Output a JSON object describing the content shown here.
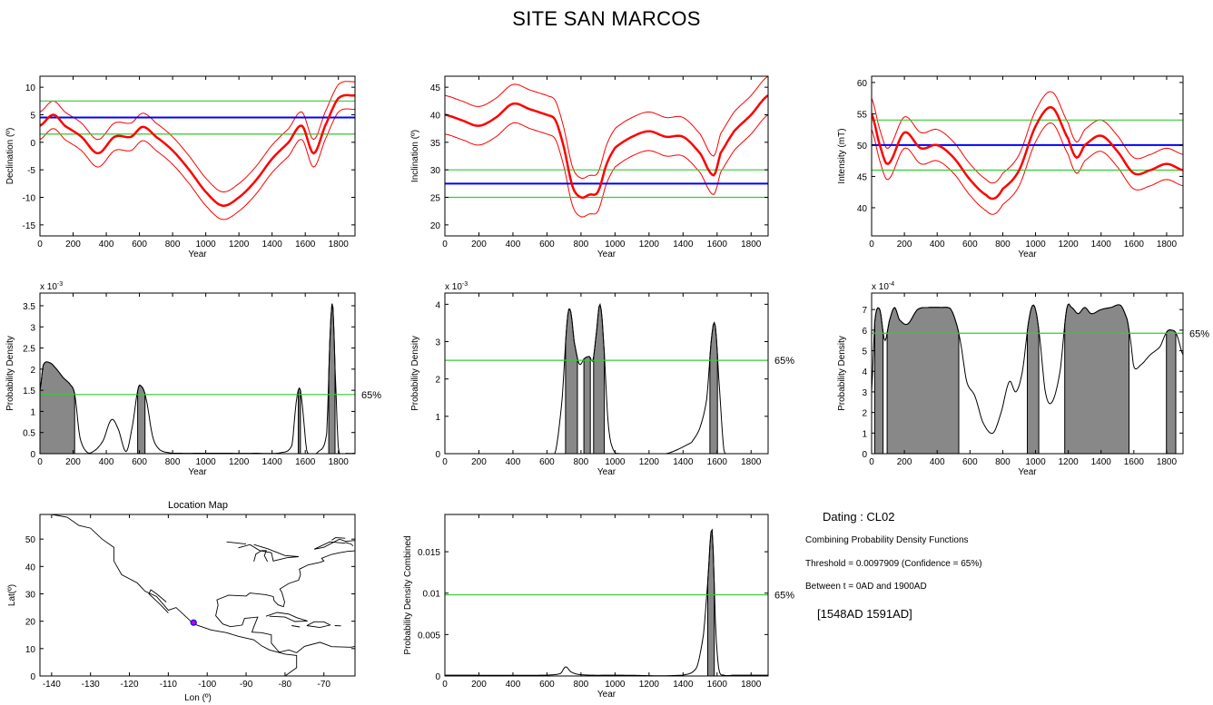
{
  "title": "SITE SAN MARCOS",
  "colors": {
    "curve": "#ff0000",
    "mean": "#0000ff",
    "bounds": "#33cc33",
    "threshold": "#33cc33",
    "fill": "#888888"
  },
  "info": {
    "dating": "Dating : CL02",
    "combining": "Combining Probability Density Functions",
    "threshold": "Threshold = 0.0097909 (Confidence = 65%)",
    "between": "Between t = 0AD and 1900AD",
    "interval": "[1548AD   1591AD]"
  },
  "chart_data": [
    {
      "id": "decl",
      "type": "line",
      "xlabel": "Year",
      "ylabel": "Declination (º)",
      "xlim": [
        0,
        1900
      ],
      "ylim": [
        -17,
        12
      ],
      "xticks": [
        0,
        200,
        400,
        600,
        800,
        1000,
        1200,
        1400,
        1600,
        1800
      ],
      "yticks": [
        -15,
        -10,
        -5,
        0,
        5,
        10
      ],
      "hlines": [
        {
          "y": 4.5,
          "color": "mean"
        },
        {
          "y": 7.5,
          "color": "bounds"
        },
        {
          "y": 1.5,
          "color": "bounds"
        }
      ],
      "series": [
        {
          "x": [
            0,
            80,
            150,
            250,
            350,
            450,
            550,
            620,
            700,
            800,
            900,
            1000,
            1100,
            1200,
            1300,
            1400,
            1500,
            1580,
            1650,
            1720,
            1800,
            1900
          ],
          "values": [
            3,
            5,
            3,
            1,
            -2,
            1,
            1,
            2.8,
            1,
            -1.5,
            -5,
            -9,
            -11.5,
            -10,
            -7,
            -3,
            0,
            3,
            -2,
            3,
            8,
            8.5
          ]
        }
      ],
      "band": 2.5
    },
    {
      "id": "incl",
      "type": "line",
      "xlabel": "Year",
      "ylabel": "Inclination (º)",
      "xlim": [
        0,
        1900
      ],
      "ylim": [
        18,
        47
      ],
      "xticks": [
        0,
        200,
        400,
        600,
        800,
        1000,
        1200,
        1400,
        1600,
        1800
      ],
      "yticks": [
        20,
        25,
        30,
        35,
        40,
        45
      ],
      "hlines": [
        {
          "y": 27.5,
          "color": "mean"
        },
        {
          "y": 30,
          "color": "bounds"
        },
        {
          "y": 25,
          "color": "bounds"
        }
      ],
      "series": [
        {
          "x": [
            0,
            100,
            200,
            300,
            400,
            500,
            600,
            650,
            700,
            750,
            800,
            850,
            900,
            950,
            1000,
            1100,
            1200,
            1300,
            1400,
            1500,
            1580,
            1620,
            1700,
            1800,
            1900
          ],
          "values": [
            40,
            39,
            38,
            39.5,
            42,
            41,
            40,
            39,
            34,
            27,
            25,
            25.5,
            26,
            31,
            34,
            36,
            37,
            36,
            36,
            33,
            29,
            33,
            37,
            40,
            43.5
          ]
        }
      ],
      "band": 3.5
    },
    {
      "id": "inten",
      "type": "line",
      "xlabel": "Year",
      "ylabel": "Intensity (mT)",
      "xlim": [
        0,
        1900
      ],
      "ylim": [
        35.5,
        61
      ],
      "xticks": [
        0,
        200,
        400,
        600,
        800,
        1000,
        1200,
        1400,
        1600,
        1800
      ],
      "yticks": [
        40,
        45,
        50,
        55,
        60
      ],
      "hlines": [
        {
          "y": 50,
          "color": "mean"
        },
        {
          "y": 54,
          "color": "bounds"
        },
        {
          "y": 46,
          "color": "bounds"
        }
      ],
      "series": [
        {
          "x": [
            0,
            50,
            100,
            200,
            300,
            400,
            500,
            600,
            700,
            750,
            800,
            900,
            1000,
            1100,
            1200,
            1250,
            1300,
            1400,
            1500,
            1600,
            1700,
            1800,
            1900
          ],
          "values": [
            55,
            50,
            47,
            52,
            49.5,
            50,
            48,
            44.5,
            42,
            41.5,
            43,
            46,
            53,
            56,
            51,
            48,
            50,
            51.5,
            49,
            45.5,
            46,
            47,
            46
          ]
        }
      ],
      "band": 2.5
    },
    {
      "id": "pdf-decl",
      "type": "area",
      "xlabel": "Year",
      "ylabel": "Probability Density",
      "exponent": "x 10",
      "exponent_power": "-3",
      "xlim": [
        0,
        1900
      ],
      "ylim": [
        0,
        3.8
      ],
      "xticks": [
        0,
        200,
        400,
        600,
        800,
        1000,
        1200,
        1400,
        1600,
        1800
      ],
      "yticks": [
        0,
        0.5,
        1,
        1.5,
        2,
        2.5,
        3,
        3.5
      ],
      "threshold": 1.4,
      "threshold_label": "65%",
      "x": [
        0,
        20,
        60,
        100,
        140,
        180,
        210,
        240,
        280,
        320,
        380,
        430,
        470,
        520,
        560,
        590,
        610,
        640,
        680,
        720,
        780,
        850,
        950,
        1100,
        1300,
        1450,
        1520,
        1545,
        1565,
        1580,
        1610,
        1680,
        1730,
        1750,
        1765,
        1780,
        1800,
        1850,
        1900
      ],
      "values": [
        1.5,
        2.1,
        2.15,
        2.0,
        1.8,
        1.65,
        1.4,
        0.4,
        0.05,
        0.05,
        0.3,
        0.8,
        0.6,
        0.05,
        0.7,
        1.5,
        1.6,
        1.3,
        0.4,
        0.1,
        0.02,
        0.01,
        0.01,
        0.01,
        0.01,
        0.02,
        0.2,
        1.2,
        1.55,
        1.2,
        0.05,
        0.05,
        0.5,
        2.8,
        3.55,
        2.0,
        0.1,
        0.01,
        0.01
      ]
    },
    {
      "id": "pdf-incl",
      "type": "area",
      "xlabel": "Year",
      "ylabel": "Probability Density",
      "exponent": "x 10",
      "exponent_power": "-3",
      "xlim": [
        0,
        1900
      ],
      "ylim": [
        0,
        4.3
      ],
      "xticks": [
        0,
        200,
        400,
        600,
        800,
        1000,
        1200,
        1400,
        1600,
        1800
      ],
      "yticks": [
        0,
        1,
        2,
        3,
        4
      ],
      "threshold": 2.5,
      "threshold_label": "65%",
      "x": [
        0,
        500,
        600,
        650,
        690,
        720,
        740,
        760,
        790,
        820,
        850,
        870,
        890,
        910,
        930,
        960,
        990,
        1030,
        1100,
        1300,
        1450,
        1500,
        1540,
        1570,
        1590,
        1610,
        1640,
        1700,
        1900
      ],
      "values": [
        0,
        0,
        0,
        0.05,
        1.5,
        3.6,
        3.8,
        3.0,
        2.4,
        2.55,
        2.6,
        2.5,
        3.2,
        4.0,
        3.2,
        0.8,
        0.1,
        0,
        0,
        0,
        0.3,
        0.7,
        1.5,
        3.2,
        3.4,
        2.0,
        0.1,
        0,
        0
      ]
    },
    {
      "id": "pdf-inten",
      "type": "area",
      "xlabel": "Year",
      "ylabel": "Probability Density",
      "exponent": "x 10",
      "exponent_power": "-4",
      "xlim": [
        0,
        1900
      ],
      "ylim": [
        0,
        7.8
      ],
      "xticks": [
        0,
        200,
        400,
        600,
        800,
        1000,
        1200,
        1400,
        1600,
        1800
      ],
      "yticks": [
        0,
        1,
        2,
        3,
        4,
        5,
        6,
        7
      ],
      "threshold": 5.85,
      "threshold_label": "65%",
      "x": [
        0,
        20,
        50,
        80,
        110,
        140,
        170,
        220,
        280,
        350,
        420,
        480,
        510,
        540,
        580,
        630,
        680,
        740,
        790,
        840,
        880,
        920,
        960,
        990,
        1020,
        1060,
        1100,
        1150,
        1190,
        1220,
        1260,
        1300,
        1340,
        1400,
        1460,
        1520,
        1560,
        1580,
        1600,
        1640,
        1700,
        1760,
        1800,
        1830,
        1860,
        1900
      ],
      "values": [
        3.0,
        6.5,
        7.0,
        5.5,
        6.5,
        7.1,
        6.5,
        6.3,
        7.0,
        7.1,
        7.1,
        7.05,
        6.5,
        5.5,
        3.5,
        2.8,
        1.5,
        1.0,
        2.0,
        3.5,
        3.0,
        4.0,
        6.5,
        7.2,
        6.0,
        3.0,
        2.5,
        4.0,
        7.0,
        7.1,
        6.8,
        7.1,
        6.8,
        7.0,
        7.1,
        7.2,
        6.5,
        5.5,
        4.2,
        4.3,
        4.8,
        5.2,
        5.9,
        6.0,
        5.8,
        4.8
      ]
    },
    {
      "id": "pdf-comb",
      "type": "area",
      "xlabel": "Year",
      "ylabel": "Probability Density Combined",
      "xlim": [
        0,
        1900
      ],
      "ylim": [
        0,
        0.0195
      ],
      "xticks": [
        0,
        200,
        400,
        600,
        800,
        1000,
        1200,
        1400,
        1600,
        1800
      ],
      "yticks": [
        0,
        0.005,
        0.01,
        0.015
      ],
      "ytick_labels": [
        "0",
        "0.005",
        "0.01",
        "0.015"
      ],
      "threshold": 0.0098,
      "threshold_label": "65%",
      "x": [
        0,
        600,
        680,
        710,
        740,
        780,
        850,
        1000,
        1400,
        1480,
        1520,
        1548,
        1565,
        1575,
        1591,
        1610,
        1640,
        1700,
        1900
      ],
      "values": [
        0.0001,
        0.0001,
        0.0003,
        0.0011,
        0.0005,
        0.0002,
        0.0001,
        0.0001,
        0.0001,
        0.001,
        0.005,
        0.012,
        0.0175,
        0.016,
        0.006,
        0.0008,
        0.0001,
        0.0001,
        0.0001
      ]
    }
  ],
  "map": {
    "title": "Location Map",
    "xlabel": "Lon (º)",
    "ylabel": "Lat(º)",
    "xticks": [
      -140,
      -130,
      -120,
      -110,
      -100,
      -90,
      -80,
      -70
    ],
    "yticks": [
      0,
      10,
      20,
      30,
      40,
      50
    ],
    "site_lon": -103.5,
    "site_lat": 19.5
  }
}
